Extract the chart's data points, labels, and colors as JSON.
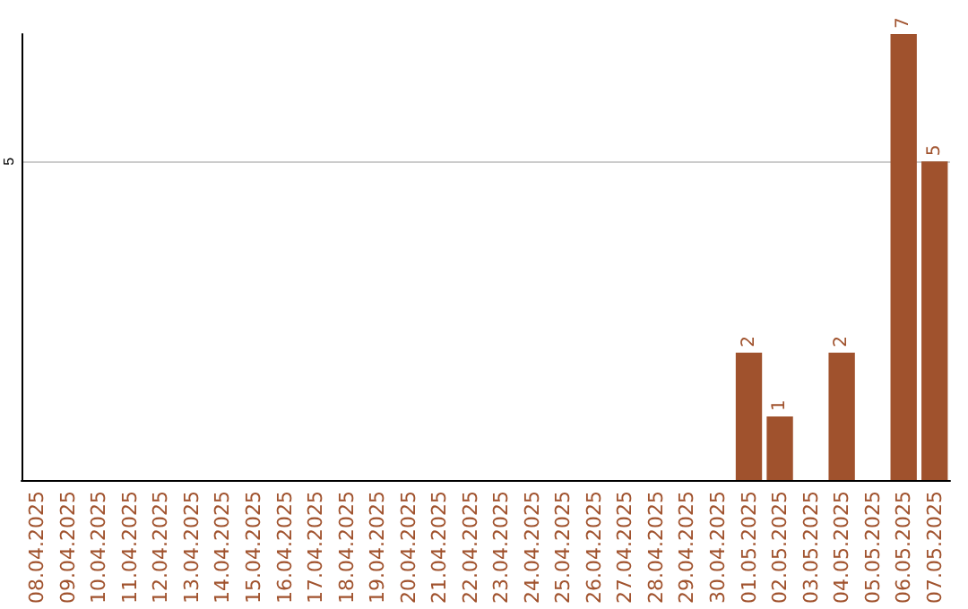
{
  "chart_data": {
    "type": "bar",
    "categories": [
      "08.04.2025",
      "09.04.2025",
      "10.04.2025",
      "11.04.2025",
      "12.04.2025",
      "13.04.2025",
      "14.04.2025",
      "15.04.2025",
      "16.04.2025",
      "17.04.2025",
      "18.04.2025",
      "19.04.2025",
      "20.04.2025",
      "21.04.2025",
      "22.04.2025",
      "23.04.2025",
      "24.04.2025",
      "25.04.2025",
      "26.04.2025",
      "27.04.2025",
      "28.04.2025",
      "29.04.2025",
      "30.04.2025",
      "01.05.2025",
      "02.05.2025",
      "03.05.2025",
      "04.05.2025",
      "05.05.2025",
      "06.05.2025",
      "07.05.2025"
    ],
    "values": [
      null,
      null,
      null,
      null,
      null,
      null,
      null,
      null,
      null,
      null,
      null,
      null,
      null,
      null,
      null,
      null,
      null,
      null,
      null,
      null,
      null,
      null,
      null,
      2,
      1,
      null,
      2,
      null,
      7,
      5
    ],
    "color": "#a0522d",
    "ylim": [
      0,
      7
    ],
    "yticks": [
      5
    ],
    "grid": "y",
    "data_labels": true
  }
}
